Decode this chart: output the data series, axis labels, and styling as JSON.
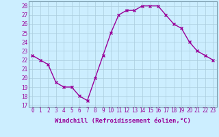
{
  "x": [
    0,
    1,
    2,
    3,
    4,
    5,
    6,
    7,
    8,
    9,
    10,
    11,
    12,
    13,
    14,
    15,
    16,
    17,
    18,
    19,
    20,
    21,
    22,
    23
  ],
  "y": [
    22.5,
    22.0,
    21.5,
    19.5,
    19.0,
    19.0,
    18.0,
    17.5,
    20.0,
    22.5,
    25.0,
    27.0,
    27.5,
    27.5,
    28.0,
    28.0,
    28.0,
    27.0,
    26.0,
    25.5,
    24.0,
    23.0,
    22.5,
    22.0
  ],
  "line_color": "#990099",
  "marker": "x",
  "marker_size": 3,
  "linewidth": 1.0,
  "xlabel": "Windchill (Refroidissement éolien,°C)",
  "xlabel_fontsize": 6.5,
  "ylabel_ticks": [
    17,
    18,
    19,
    20,
    21,
    22,
    23,
    24,
    25,
    26,
    27,
    28
  ],
  "xlim": [
    -0.5,
    23.5
  ],
  "ylim": [
    16.8,
    28.5
  ],
  "bg_color": "#cceeff",
  "grid_color": "#aaccdd",
  "tick_color": "#990099",
  "tick_fontsize": 5.5,
  "xlabel_color": "#990099",
  "spine_color": "#7799aa"
}
